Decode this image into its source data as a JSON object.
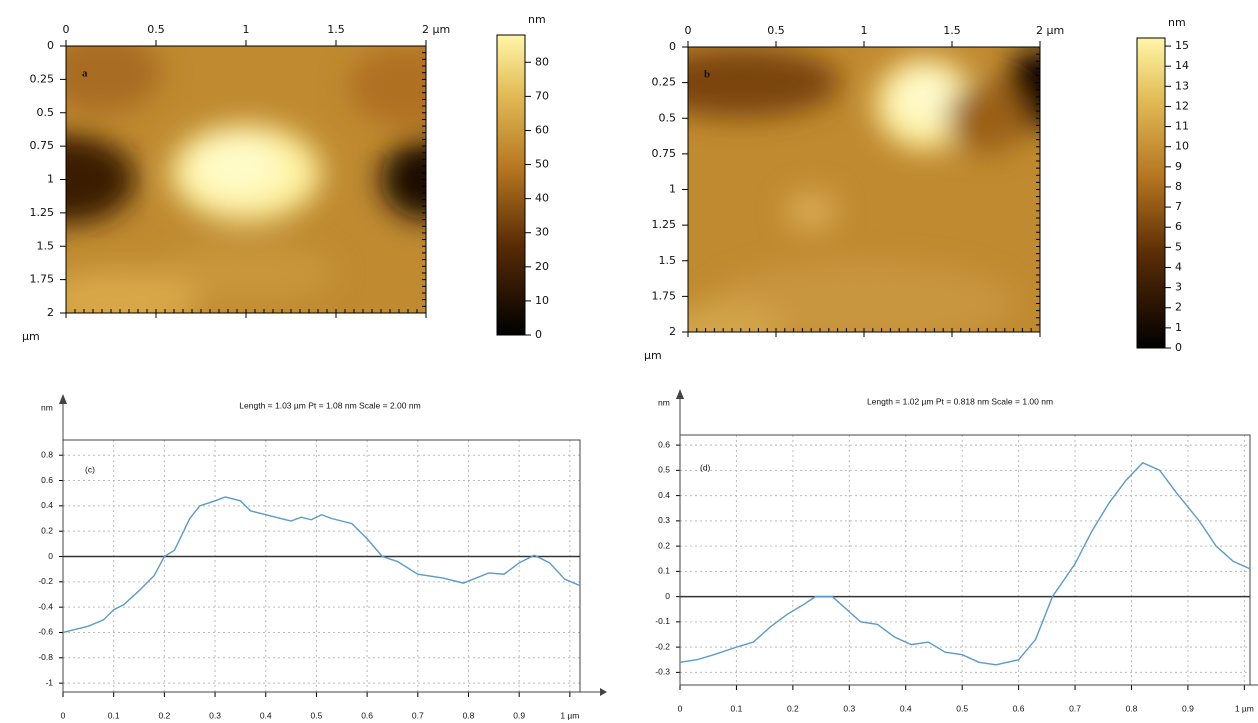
{
  "chart_data": [
    {
      "type": "image",
      "label": "a",
      "xlim": [
        0,
        2
      ],
      "xticks": [
        0,
        0.5,
        1,
        1.5,
        {
          "value": 2,
          "label": "2 µm"
        }
      ],
      "ylim": [
        0,
        2
      ],
      "yticks": [
        0,
        0.25,
        0.5,
        0.75,
        1,
        1.25,
        1.5,
        1.75,
        2
      ],
      "ylabel": "µm",
      "colorbar": {
        "label": "nm",
        "lim": [
          0,
          88
        ],
        "ticks": [
          0,
          10,
          20,
          30,
          40,
          50,
          60,
          70,
          80
        ]
      }
    },
    {
      "type": "image",
      "label": "b",
      "xlim": [
        0,
        2
      ],
      "xticks": [
        0,
        0.5,
        1,
        1.5,
        {
          "value": 2,
          "label": "2 µm"
        }
      ],
      "ylim": [
        0,
        2
      ],
      "yticks": [
        0,
        0.25,
        0.5,
        0.75,
        1,
        1.25,
        1.5,
        1.75,
        2
      ],
      "ylabel": "µm",
      "colorbar": {
        "label": "nm",
        "lim": [
          0,
          15.4
        ],
        "ticks": [
          0,
          1,
          2,
          3,
          4,
          5,
          6,
          7,
          8,
          9,
          10,
          11,
          12,
          13,
          14,
          15
        ]
      }
    },
    {
      "type": "line",
      "label": "(c)",
      "title": "Length = 1.03 µm  Pt = 1.08 nm  Scale = 2.00 nm",
      "ylabel": "nm",
      "xlim": [
        0,
        1.02
      ],
      "xticks": [
        0,
        0.1,
        0.2,
        0.3,
        0.4,
        0.5,
        0.6,
        0.7,
        0.8,
        0.9,
        {
          "value": 1,
          "label": "1 µm"
        }
      ],
      "ylim": [
        -1.07,
        0.92
      ],
      "yticks": [
        -1,
        -0.8,
        -0.6,
        -0.4,
        -0.2,
        0,
        0.2,
        0.4,
        0.6,
        0.8
      ],
      "grid": true,
      "x": [
        0,
        0.05,
        0.08,
        0.1,
        0.12,
        0.15,
        0.18,
        0.2,
        0.22,
        0.25,
        0.27,
        0.3,
        0.32,
        0.35,
        0.37,
        0.4,
        0.43,
        0.45,
        0.47,
        0.49,
        0.51,
        0.53,
        0.57,
        0.6,
        0.63,
        0.66,
        0.7,
        0.75,
        0.79,
        0.84,
        0.87,
        0.9,
        0.93,
        0.96,
        0.99,
        1.02
      ],
      "series": [
        {
          "color": "#5b9bc8",
          "values": [
            -0.6,
            -0.55,
            -0.5,
            -0.42,
            -0.38,
            -0.27,
            -0.15,
            0,
            0.05,
            0.3,
            0.4,
            0.44,
            0.47,
            0.44,
            0.36,
            0.33,
            0.3,
            0.28,
            0.31,
            0.29,
            0.33,
            0.3,
            0.26,
            0.14,
            0,
            -0.04,
            -0.14,
            -0.17,
            -0.21,
            -0.13,
            -0.14,
            -0.05,
            0.01,
            -0.05,
            -0.18,
            -0.23
          ]
        }
      ]
    },
    {
      "type": "line",
      "label": "(d)",
      "title": "Length = 1.02 µm  Pt = 0.818 nm  Scale = 1.00 nm",
      "ylabel": "nm",
      "xlim": [
        0,
        1.01
      ],
      "xticks": [
        0,
        0.1,
        0.2,
        0.3,
        0.4,
        0.5,
        0.6,
        0.7,
        0.8,
        0.9,
        {
          "value": 1,
          "label": "1 µm"
        }
      ],
      "ylim": [
        -0.35,
        0.64
      ],
      "yticks": [
        -0.3,
        -0.2,
        -0.1,
        0,
        0.1,
        0.2,
        0.3,
        0.4,
        0.5,
        0.6
      ],
      "grid": true,
      "x": [
        0,
        0.03,
        0.06,
        0.1,
        0.13,
        0.16,
        0.19,
        0.22,
        0.24,
        0.27,
        0.29,
        0.32,
        0.35,
        0.38,
        0.41,
        0.44,
        0.47,
        0.5,
        0.53,
        0.56,
        0.6,
        0.63,
        0.66,
        0.7,
        0.73,
        0.76,
        0.79,
        0.82,
        0.85,
        0.88,
        0.92,
        0.95,
        0.98,
        1.01
      ],
      "series": [
        {
          "color": "#5b9bc8",
          "values": [
            -0.26,
            -0.25,
            -0.23,
            -0.2,
            -0.18,
            -0.12,
            -0.07,
            -0.03,
            0,
            0,
            -0.04,
            -0.1,
            -0.11,
            -0.16,
            -0.19,
            -0.18,
            -0.22,
            -0.23,
            -0.26,
            -0.27,
            -0.25,
            -0.17,
            0,
            0.13,
            0.26,
            0.37,
            0.46,
            0.53,
            0.5,
            0.41,
            0.3,
            0.2,
            0.14,
            0.11
          ]
        }
      ]
    }
  ]
}
